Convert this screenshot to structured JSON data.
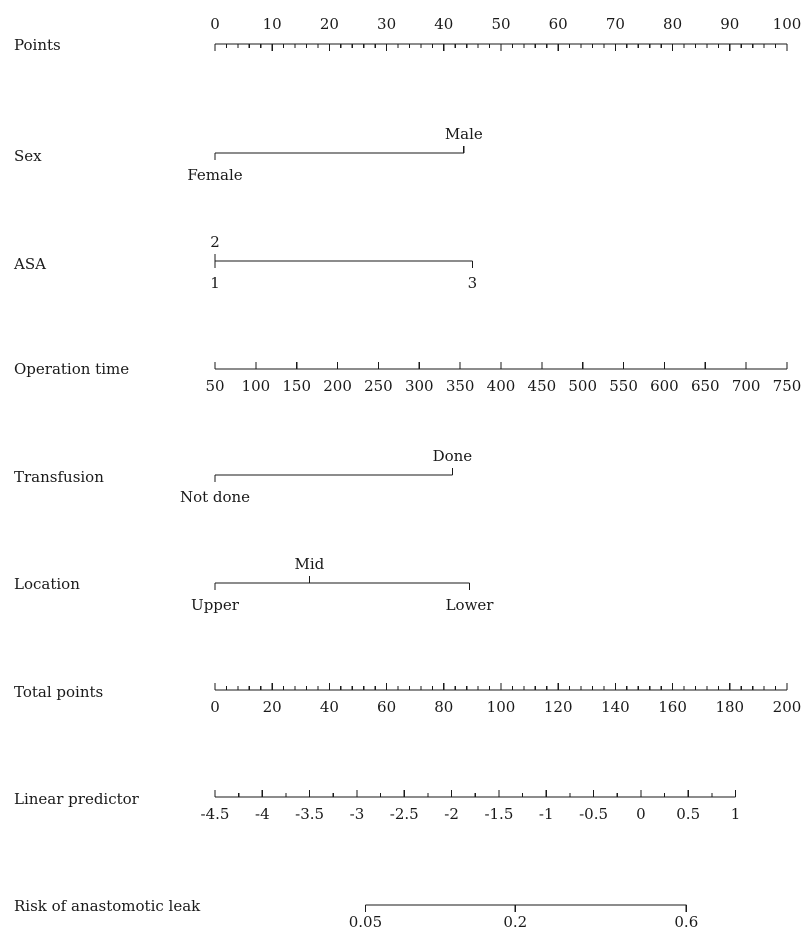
{
  "chart_data": {
    "type": "nomogram",
    "title": "",
    "variables": [
      {
        "name": "Points",
        "kind": "continuous",
        "points_range": [
          0,
          100
        ],
        "labels": [
          "0",
          "10",
          "20",
          "30",
          "40",
          "50",
          "60",
          "70",
          "80",
          "90",
          "100"
        ],
        "label_values": [
          0,
          10,
          20,
          30,
          40,
          50,
          60,
          70,
          80,
          90,
          100
        ],
        "label_side": "above",
        "minor_step": 2
      },
      {
        "name": "Sex",
        "kind": "categorical",
        "categories": [
          {
            "label": "Female",
            "points": 0,
            "label_side": "below"
          },
          {
            "label": "Male",
            "points": 43.5,
            "label_side": "above"
          }
        ]
      },
      {
        "name": "ASA",
        "kind": "categorical",
        "categories": [
          {
            "label": "1",
            "points": 0,
            "label_side": "below"
          },
          {
            "label": "2",
            "points": 0,
            "label_side": "above"
          },
          {
            "label": "3",
            "points": 45,
            "label_side": "below"
          }
        ]
      },
      {
        "name": "Operation time",
        "kind": "continuous",
        "points_range": [
          0,
          100
        ],
        "labels": [
          "50",
          "100",
          "150",
          "200",
          "250",
          "300",
          "350",
          "400",
          "450",
          "500",
          "550",
          "600",
          "650",
          "700",
          "750"
        ],
        "label_values": [
          50,
          100,
          150,
          200,
          250,
          300,
          350,
          400,
          450,
          500,
          550,
          600,
          650,
          700,
          750
        ],
        "label_side": "below"
      },
      {
        "name": "Transfusion",
        "kind": "categorical",
        "categories": [
          {
            "label": "Not done",
            "points": 0,
            "label_side": "below"
          },
          {
            "label": "Done",
            "points": 41.5,
            "label_side": "above"
          }
        ]
      },
      {
        "name": "Location",
        "kind": "categorical",
        "categories": [
          {
            "label": "Upper",
            "points": 0,
            "label_side": "below"
          },
          {
            "label": "Mid",
            "points": 16.5,
            "label_side": "above"
          },
          {
            "label": "Lower",
            "points": 44.5,
            "label_side": "below"
          }
        ]
      },
      {
        "name": "Total points",
        "kind": "continuous",
        "points_range": [
          0,
          100
        ],
        "labels": [
          "0",
          "20",
          "40",
          "60",
          "80",
          "100",
          "120",
          "140",
          "160",
          "180",
          "200"
        ],
        "label_values": [
          0,
          20,
          40,
          60,
          80,
          100,
          120,
          140,
          160,
          180,
          200
        ],
        "label_side": "below",
        "minor_step": 4
      },
      {
        "name": "Linear predictor",
        "kind": "continuous",
        "points_range": [
          0,
          91
        ],
        "labels": [
          "-4.5",
          "-4",
          "-3.5",
          "-3",
          "-2.5",
          "-2",
          "-1.5",
          "-1",
          "-0.5",
          "0",
          "0.5",
          "1"
        ],
        "label_values": [
          -4.5,
          -4,
          -3.5,
          -3,
          -2.5,
          -2,
          -1.5,
          -1,
          -0.5,
          0,
          0.5,
          1
        ],
        "label_side": "below",
        "minor_step": 0.25
      },
      {
        "name": "Risk of anastomotic leak",
        "kind": "nonlinear",
        "labels": [
          "0.05",
          "0.2",
          "0.6"
        ],
        "label_values": [
          0.05,
          0.2,
          0.6
        ],
        "label_points": [
          26.3,
          52.5,
          82.4
        ],
        "label_side": "below"
      }
    ]
  }
}
